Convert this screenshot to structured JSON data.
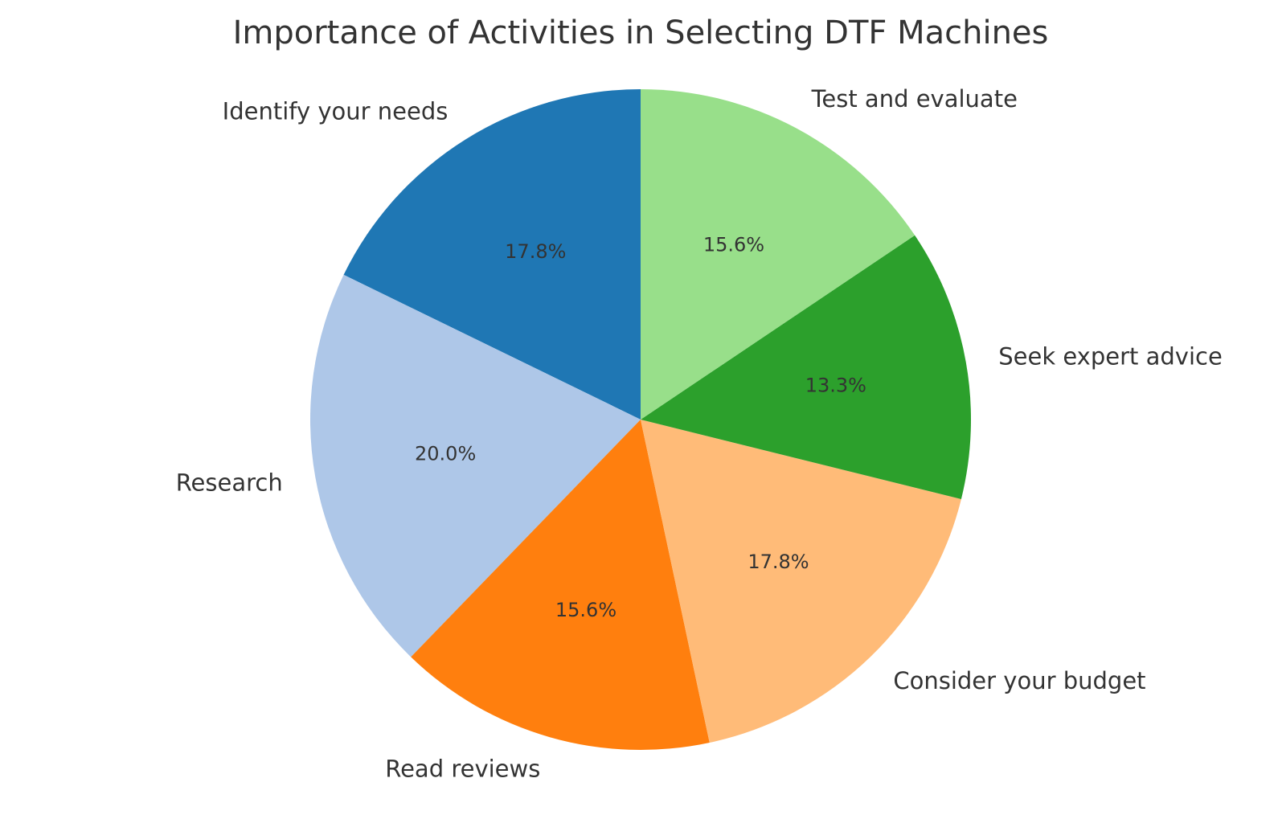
{
  "chart_data": {
    "type": "pie",
    "title": "Importance of Activities in Selecting DTF Machines",
    "start_angle_deg": 90,
    "direction": "counterclockwise",
    "legend": "none",
    "slices": [
      {
        "label": "Identify your needs",
        "value": 17.8,
        "pct_text": "17.8%",
        "color": "#1f77b4"
      },
      {
        "label": "Research",
        "value": 20.0,
        "pct_text": "20.0%",
        "color": "#aec7e8"
      },
      {
        "label": "Read reviews",
        "value": 15.6,
        "pct_text": "15.6%",
        "color": "#ff7f0e"
      },
      {
        "label": "Consider your budget",
        "value": 17.8,
        "pct_text": "17.8%",
        "color": "#ffbb78"
      },
      {
        "label": "Seek expert advice",
        "value": 13.3,
        "pct_text": "13.3%",
        "color": "#2ca02c"
      },
      {
        "label": "Test and evaluate",
        "value": 15.6,
        "pct_text": "15.6%",
        "color": "#98df8a"
      }
    ]
  }
}
